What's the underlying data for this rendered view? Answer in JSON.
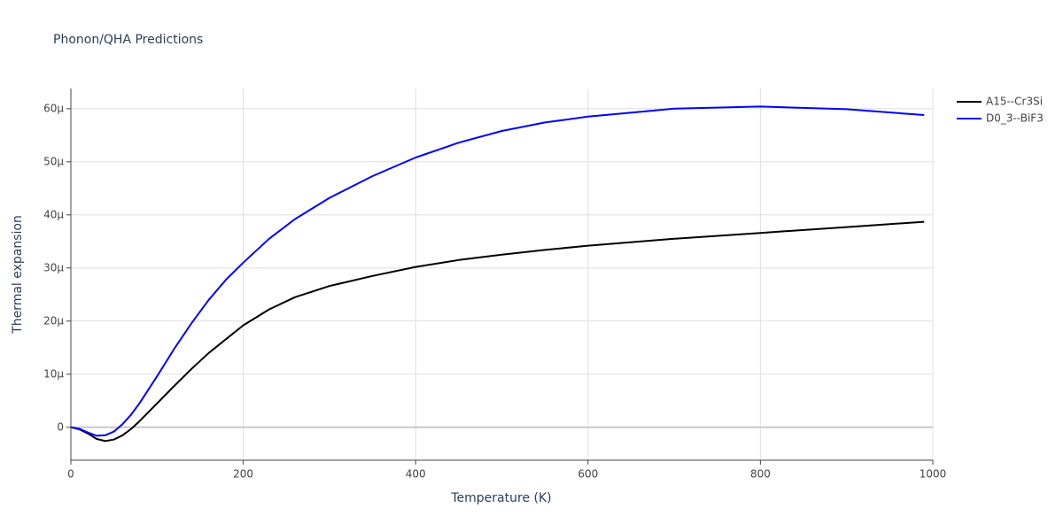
{
  "chart_data": {
    "type": "line",
    "title": "Phonon/QHA Predictions",
    "xlabel": "Temperature (K)",
    "ylabel": "Thermal expansion",
    "x": [
      0,
      10,
      20,
      30,
      40,
      50,
      60,
      70,
      80,
      100,
      120,
      140,
      160,
      180,
      200,
      230,
      260,
      300,
      350,
      400,
      450,
      500,
      550,
      600,
      700,
      800,
      900,
      990
    ],
    "series": [
      {
        "name": "A15--Cr3Si",
        "color": "#000000",
        "values": [
          0,
          -0.4,
          -1.2,
          -2.2,
          -2.6,
          -2.3,
          -1.5,
          -0.3,
          1.2,
          4.5,
          7.8,
          11.0,
          14.0,
          16.6,
          19.2,
          22.2,
          24.5,
          26.6,
          28.5,
          30.2,
          31.5,
          32.5,
          33.4,
          34.2,
          35.5,
          36.6,
          37.7,
          38.7
        ]
      },
      {
        "name": "D0_3--BiF3",
        "color": "#0000ff",
        "values": [
          0,
          -0.3,
          -1.0,
          -1.6,
          -1.5,
          -0.8,
          0.6,
          2.4,
          4.6,
          9.6,
          14.8,
          19.6,
          24.0,
          27.8,
          31.0,
          35.5,
          39.2,
          43.2,
          47.3,
          50.8,
          53.6,
          55.8,
          57.4,
          58.5,
          60.0,
          60.4,
          59.9,
          58.8
        ]
      }
    ],
    "xlim": [
      0,
      1000
    ],
    "xticks": [
      0,
      200,
      400,
      600,
      800,
      1000
    ],
    "ylim": [
      -6.2,
      63.8
    ],
    "yticks": [
      0,
      {
        "value": 10,
        "label": "10µ"
      },
      {
        "value": 20,
        "label": "20µ"
      },
      {
        "value": 30,
        "label": "30µ"
      },
      {
        "value": 40,
        "label": "40µ"
      },
      {
        "value": 50,
        "label": "50µ"
      },
      {
        "value": 60,
        "label": "60µ"
      }
    ],
    "grid": true,
    "legend": "right"
  }
}
